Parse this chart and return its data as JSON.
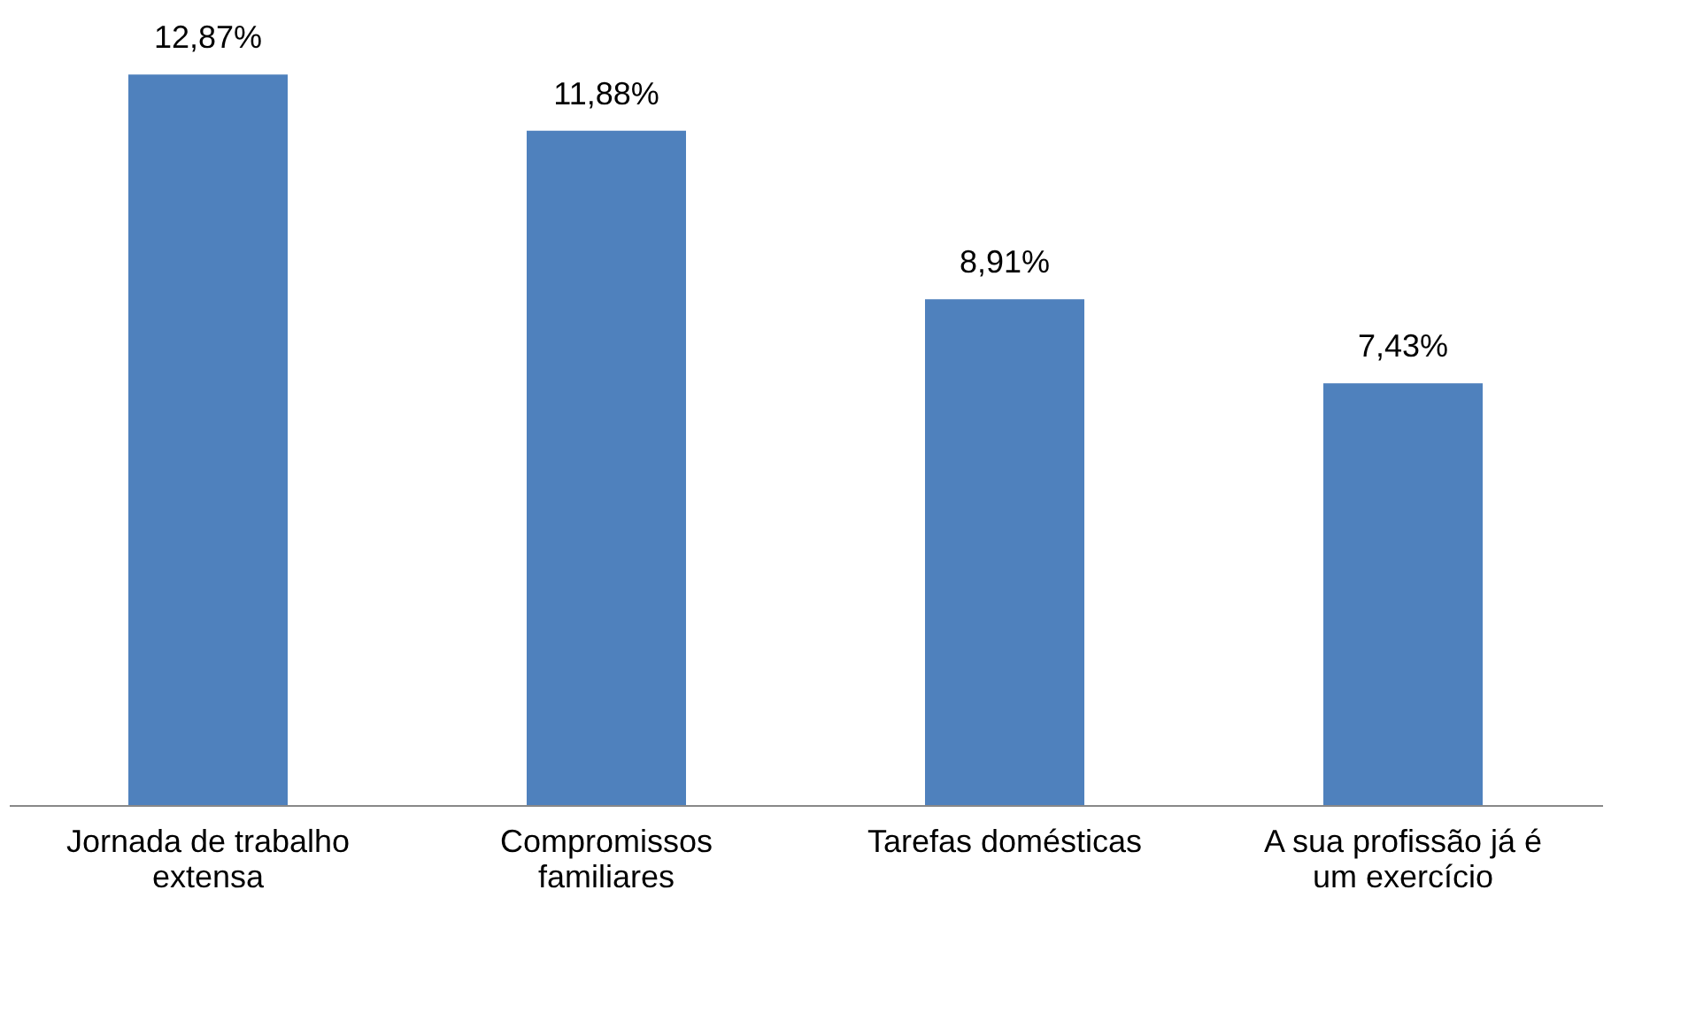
{
  "chart_data": {
    "type": "bar",
    "categories": [
      "Jornada de trabalho extensa",
      "Compromissos familiares",
      "Tarefas domésticas",
      "A sua profissão já é um exercício"
    ],
    "values": [
      12.87,
      11.88,
      8.91,
      7.43
    ],
    "value_labels": [
      "12,87%",
      "11,88%",
      "8,91%",
      "7,43%"
    ],
    "color": "#4f81bd"
  }
}
